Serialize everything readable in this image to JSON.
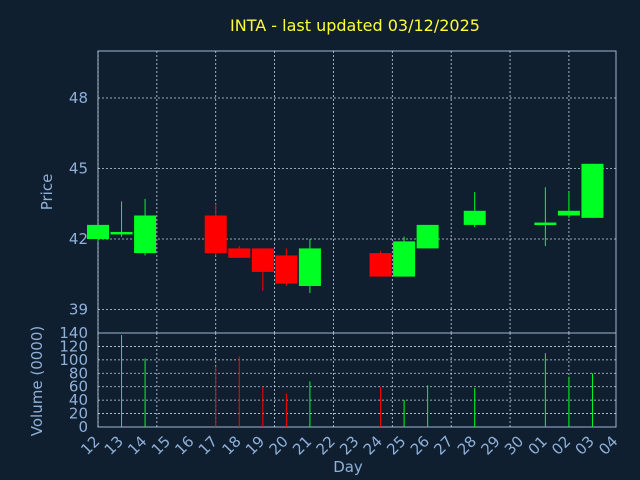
{
  "chart_data": {
    "type": "candlestick",
    "title": "INTA - last updated 03/12/2025",
    "xlabel": "Day",
    "price_panel": {
      "ylabel": "Price",
      "yticks": [
        39,
        42,
        45,
        48
      ],
      "ylim": [
        38.0,
        50.0
      ]
    },
    "volume_panel": {
      "ylabel": "Volume (0000)",
      "yticks": [
        0,
        20,
        40,
        60,
        80,
        100,
        120,
        140
      ],
      "ylim": [
        0,
        140
      ]
    },
    "x_tick_labels": [
      "12",
      "13",
      "14",
      "15",
      "16",
      "17",
      "18",
      "19",
      "20",
      "21",
      "22",
      "23",
      "24",
      "25",
      "26",
      "27",
      "28",
      "29",
      "30",
      "01",
      "02",
      "03",
      "04"
    ],
    "colors": {
      "up": "#00ff22",
      "down": "#ff0000",
      "title": "#ffff33",
      "axis": "#8fb0d8",
      "background": "#0f1f30"
    },
    "candles": [
      {
        "x": 12.0,
        "open": 42.0,
        "high": 42.6,
        "low": 41.9,
        "close": 42.6,
        "volume": 0
      },
      {
        "x": 13.0,
        "open": 42.2,
        "high": 43.6,
        "low": 42.1,
        "close": 42.3,
        "volume": 137
      },
      {
        "x": 14.0,
        "open": 41.4,
        "high": 43.7,
        "low": 41.3,
        "close": 43.0,
        "volume": 102
      },
      {
        "x": 17.0,
        "open": 43.0,
        "high": 43.5,
        "low": 41.3,
        "close": 41.4,
        "volume": 90
      },
      {
        "x": 18.0,
        "open": 41.6,
        "high": 41.7,
        "low": 41.2,
        "close": 41.2,
        "volume": 105
      },
      {
        "x": 19.0,
        "open": 41.6,
        "high": 41.6,
        "low": 39.8,
        "close": 40.6,
        "volume": 60
      },
      {
        "x": 20.0,
        "open": 41.3,
        "high": 41.6,
        "low": 40.0,
        "close": 40.1,
        "volume": 50
      },
      {
        "x": 21.0,
        "open": 40.0,
        "high": 42.0,
        "low": 39.7,
        "close": 41.6,
        "volume": 68
      },
      {
        "x": 24.0,
        "open": 41.4,
        "high": 41.5,
        "low": 40.4,
        "close": 40.4,
        "volume": 60
      },
      {
        "x": 25.0,
        "open": 40.4,
        "high": 42.1,
        "low": 40.4,
        "close": 41.9,
        "volume": 40
      },
      {
        "x": 26.0,
        "open": 41.6,
        "high": 42.6,
        "low": 41.6,
        "close": 42.6,
        "volume": 62
      },
      {
        "x": 28.0,
        "open": 42.6,
        "high": 44.0,
        "low": 42.5,
        "close": 43.2,
        "volume": 58
      },
      {
        "x": 31.0,
        "open": 42.6,
        "high": 44.2,
        "low": 41.7,
        "close": 42.7,
        "volume": 110
      },
      {
        "x": 32.0,
        "open": 43.0,
        "high": 44.0,
        "low": 42.9,
        "close": 43.2,
        "volume": 75
      },
      {
        "x": 33.0,
        "open": 42.9,
        "high": 45.2,
        "low": 42.9,
        "close": 45.2,
        "volume": 80
      }
    ]
  }
}
